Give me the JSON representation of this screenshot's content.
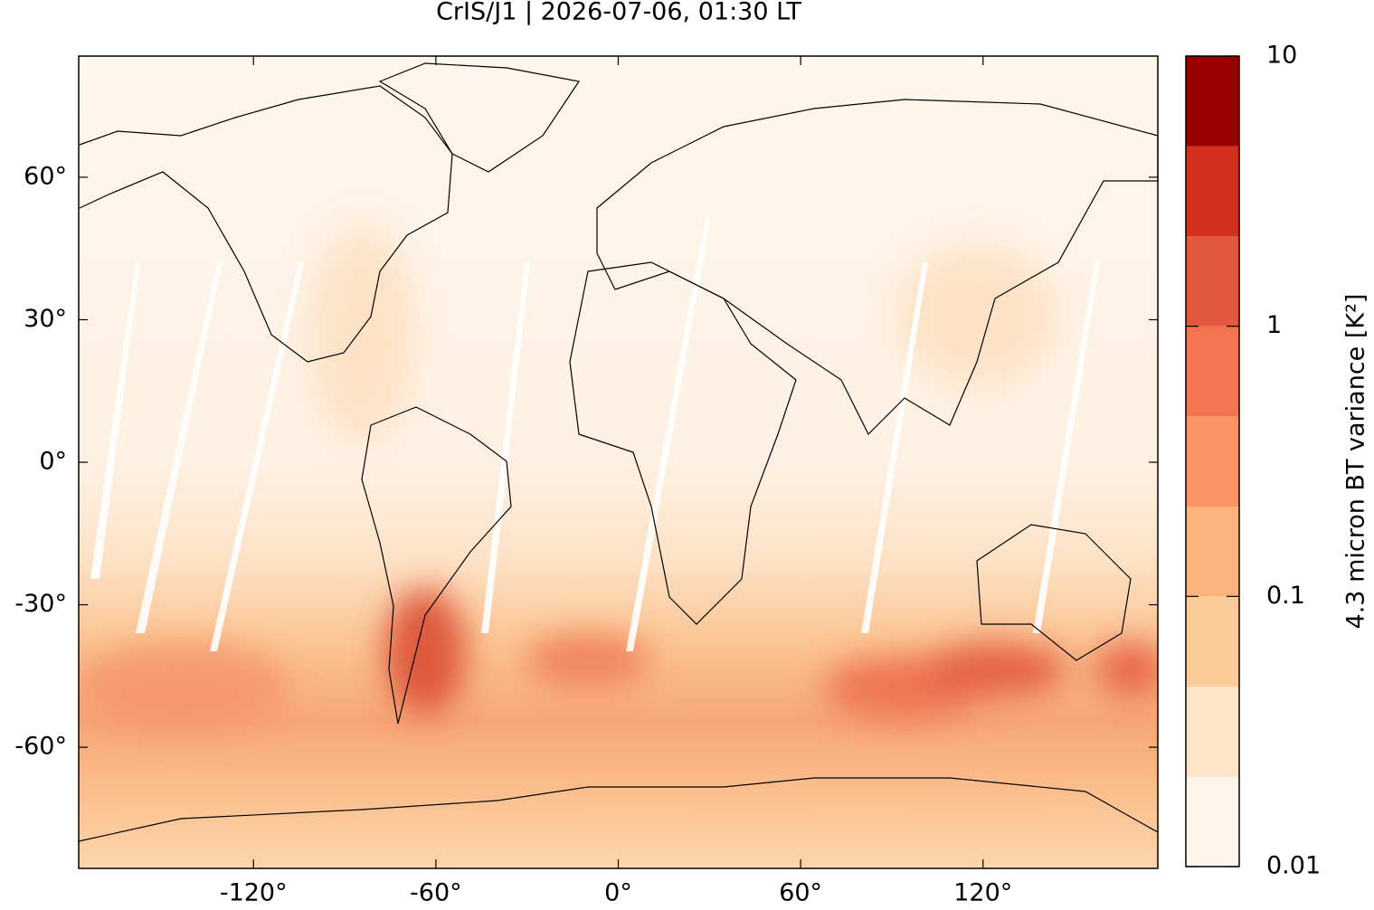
{
  "chart_data": {
    "type": "heatmap",
    "title": "CrIS/J1 | 2026-07-06, 01:30 LT",
    "xlim": [
      -177.5,
      177.5
    ],
    "ylim": [
      -85.5,
      85.5
    ],
    "xticks": [
      {
        "value": -120,
        "label": "-120°"
      },
      {
        "value": -60,
        "label": "-60°"
      },
      {
        "value": 0,
        "label": "0°"
      },
      {
        "value": 60,
        "label": "60°"
      },
      {
        "value": 120,
        "label": "120°"
      }
    ],
    "yticks": [
      {
        "value": 60,
        "label": "60°"
      },
      {
        "value": 30,
        "label": "30°"
      },
      {
        "value": 0,
        "label": "0°"
      },
      {
        "value": -30,
        "label": "-30°"
      },
      {
        "value": -60,
        "label": "-60°"
      }
    ],
    "colorbar": {
      "label": "4.3 micron BT variance [K²]",
      "scale": "log",
      "lim": [
        0.01,
        10
      ],
      "ticks": [
        0.01,
        0.1,
        1,
        10
      ],
      "levels": [
        0.01,
        0.0215,
        0.0464,
        0.1,
        0.215,
        0.464,
        1,
        2.15,
        4.64,
        10
      ],
      "colors": [
        "#fff5eb",
        "#fde3c8",
        "#fdcb97",
        "#fdb27b",
        "#fb9462",
        "#f3754f",
        "#e45741",
        "#d2301f",
        "#990000"
      ]
    }
  }
}
